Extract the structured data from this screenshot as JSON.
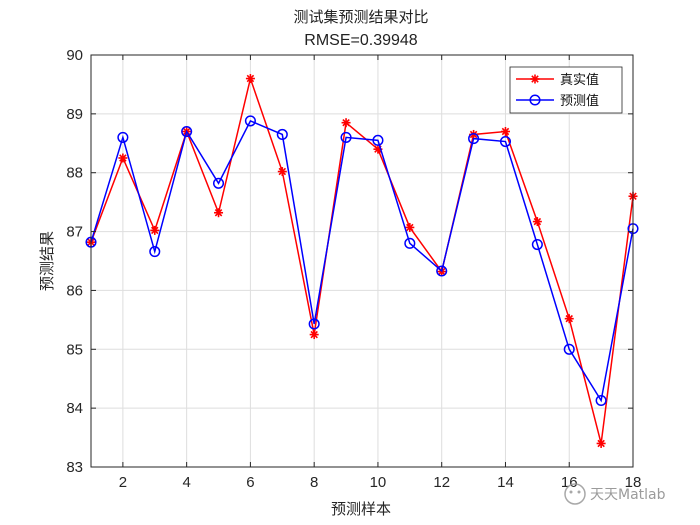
{
  "chart_data": {
    "type": "line",
    "title": "测试集预测结果对比",
    "subtitle": "RMSE=0.39948",
    "xlabel": "预测样本",
    "ylabel": "预测结果",
    "xlim": [
      1,
      18
    ],
    "ylim": [
      83,
      90
    ],
    "x": [
      1,
      2,
      3,
      4,
      5,
      6,
      7,
      8,
      9,
      10,
      11,
      12,
      13,
      14,
      15,
      16,
      17,
      18
    ],
    "x_ticks": [
      2,
      4,
      6,
      8,
      10,
      12,
      14,
      16,
      18
    ],
    "y_ticks": [
      83,
      84,
      85,
      86,
      87,
      88,
      89,
      90
    ],
    "grid": true,
    "legend_position": "top-right",
    "series": [
      {
        "name": "真实值",
        "color": "#ff0000",
        "marker": "asterisk",
        "values": [
          86.82,
          88.25,
          87.02,
          88.7,
          87.32,
          89.6,
          88.02,
          85.25,
          88.85,
          88.4,
          87.07,
          86.32,
          88.65,
          88.7,
          87.17,
          85.52,
          83.4,
          87.6
        ]
      },
      {
        "name": "预测值",
        "color": "#0000ff",
        "marker": "circle",
        "values": [
          86.82,
          88.6,
          86.66,
          88.7,
          87.82,
          88.88,
          88.65,
          85.43,
          88.6,
          88.55,
          86.8,
          86.33,
          88.58,
          88.53,
          86.78,
          85.0,
          84.13,
          87.05
        ]
      }
    ]
  },
  "watermark": {
    "text": "天天Matlab"
  }
}
